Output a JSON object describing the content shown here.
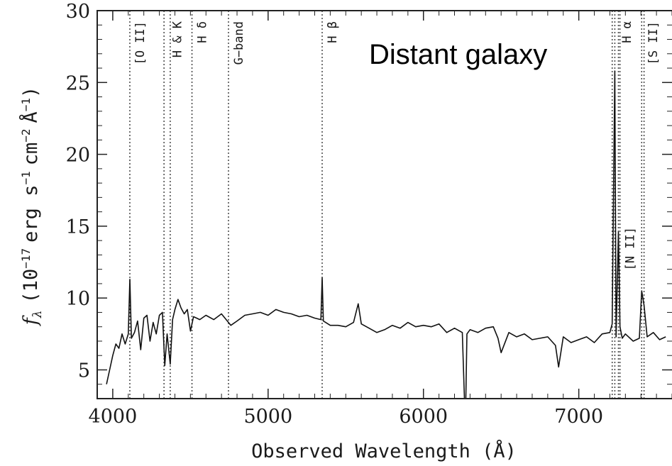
{
  "chart_data": {
    "type": "line",
    "title": "",
    "annotation": "Distant galaxy",
    "xlabel": "Observed Wavelength (Å)",
    "ylabel_parts": {
      "f": "f",
      "lambda": "λ",
      "open": "(10",
      "exp1": "−17",
      "erg": "erg s",
      "exp2": "−1",
      "cm": "cm",
      "exp3": "−2",
      "ang": "Å",
      "exp4": "−1",
      "close": ")"
    },
    "xlim": [
      3900,
      7600
    ],
    "ylim": [
      3,
      30
    ],
    "xticks": [
      4000,
      5000,
      6000,
      7000
    ],
    "xtick_labels": [
      "4000",
      "5000",
      "6000",
      "7000"
    ],
    "yticks": [
      5,
      10,
      15,
      20,
      25,
      30
    ],
    "ytick_labels": [
      "5",
      "10",
      "15",
      "20",
      "25",
      "30"
    ],
    "grid": false,
    "spectral_lines": [
      {
        "label": "[O II]",
        "wavelengths": [
          4110
        ]
      },
      {
        "label": "H & K",
        "wavelengths": [
          4330,
          4370
        ]
      },
      {
        "label": "H δ",
        "wavelengths": [
          4510
        ]
      },
      {
        "label": "G−band",
        "wavelengths": [
          4745
        ]
      },
      {
        "label": "H β",
        "wavelengths": [
          5348
        ]
      },
      {
        "label": "H α",
        "wavelengths": [
          7232,
          7255
        ]
      },
      {
        "label": "[N II]",
        "wavelengths": [
          7215,
          7265
        ]
      },
      {
        "label": "[S II]",
        "wavelengths": [
          7405,
          7420
        ]
      }
    ],
    "series": [
      {
        "x": [
          3960,
          3980,
          4000,
          4020,
          4040,
          4060,
          4080,
          4100,
          4110,
          4120,
          4140,
          4160,
          4180,
          4200,
          4220,
          4240,
          4260,
          4280,
          4300,
          4320,
          4335,
          4350,
          4370,
          4385,
          4400,
          4420,
          4440,
          4460,
          4480,
          4500,
          4520,
          4540,
          4560,
          4600,
          4650,
          4700,
          4745,
          4760,
          4800,
          4850,
          4900,
          4950,
          5000,
          5050,
          5100,
          5150,
          5200,
          5250,
          5300,
          5340,
          5348,
          5356,
          5400,
          5450,
          5500,
          5550,
          5580,
          5600,
          5650,
          5700,
          5750,
          5800,
          5850,
          5900,
          5950,
          6000,
          6050,
          6100,
          6150,
          6200,
          6250,
          6270,
          6280,
          6300,
          6350,
          6400,
          6450,
          6480,
          6500,
          6550,
          6600,
          6650,
          6700,
          6750,
          6800,
          6850,
          6870,
          6900,
          6950,
          7000,
          7050,
          7100,
          7150,
          7200,
          7215,
          7232,
          7240,
          7255,
          7265,
          7280,
          7300,
          7350,
          7390,
          7405,
          7420,
          7440,
          7480,
          7520,
          7560
        ],
        "values": [
          4.0,
          5.0,
          6.0,
          6.8,
          6.5,
          7.5,
          6.8,
          7.5,
          11.3,
          7.2,
          7.6,
          8.4,
          6.4,
          8.6,
          8.8,
          7.0,
          8.3,
          7.5,
          8.8,
          9.0,
          5.3,
          7.5,
          5.4,
          8.5,
          9.2,
          9.9,
          9.3,
          8.9,
          9.2,
          7.7,
          8.7,
          8.6,
          8.5,
          8.8,
          8.5,
          8.9,
          8.3,
          8.1,
          8.4,
          8.8,
          8.9,
          9.0,
          8.8,
          9.2,
          9.0,
          8.9,
          8.7,
          8.8,
          8.6,
          8.5,
          11.4,
          8.4,
          8.1,
          8.1,
          8.0,
          8.3,
          9.6,
          8.2,
          7.9,
          7.6,
          7.8,
          8.1,
          7.9,
          8.3,
          8.0,
          8.1,
          8.0,
          8.2,
          7.6,
          7.9,
          7.6,
          1.0,
          7.5,
          7.8,
          7.6,
          7.9,
          8.0,
          7.2,
          6.2,
          7.6,
          7.3,
          7.5,
          7.1,
          7.2,
          7.3,
          6.7,
          5.2,
          7.3,
          6.9,
          7.1,
          7.3,
          6.9,
          7.5,
          7.6,
          8.2,
          25.8,
          7.3,
          14.6,
          8.0,
          7.2,
          7.5,
          7.0,
          7.2,
          10.5,
          9.5,
          7.3,
          7.6,
          7.1,
          7.3
        ]
      }
    ]
  }
}
